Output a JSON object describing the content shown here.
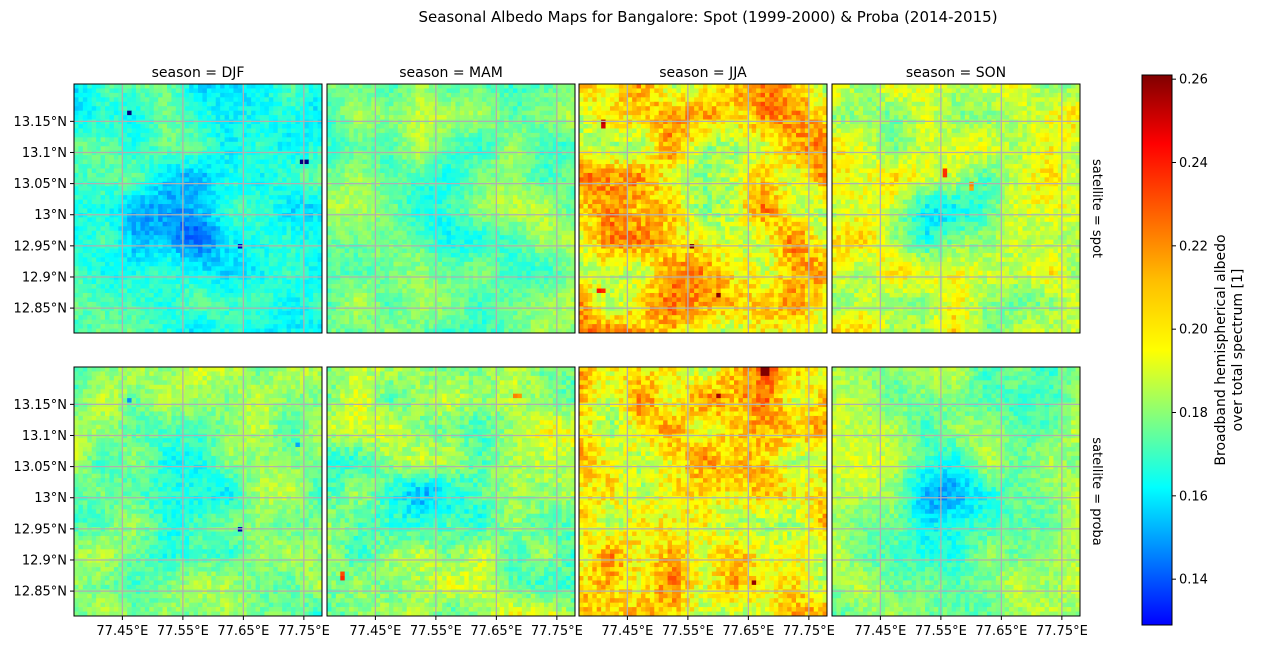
{
  "title": "Seasonal Albedo Maps for Bangalore: Spot (1999-2000) & Proba (2014-2015)",
  "chart_data": {
    "type": "heatmap",
    "title": "Seasonal Albedo Maps for Bangalore: Spot (1999-2000) & Proba (2014-2015)",
    "columns": {
      "facet": "season",
      "labels": [
        "season = DJF",
        "season = MAM",
        "season = JJA",
        "season = SON"
      ]
    },
    "rows": {
      "facet": "satellite",
      "labels": [
        "satellite = spot",
        "satellite = proba"
      ]
    },
    "x_ticks": [
      "77.45°E",
      "77.55°E",
      "77.65°E",
      "77.75°E"
    ],
    "x_tick_values": [
      77.45,
      77.55,
      77.65,
      77.75
    ],
    "xlim": [
      77.37,
      77.78
    ],
    "y_ticks": [
      "13.15°N",
      "13.1°N",
      "13.05°N",
      "13°N",
      "12.95°N",
      "12.9°N",
      "12.85°N"
    ],
    "y_tick_values": [
      13.15,
      13.1,
      13.05,
      13.0,
      12.95,
      12.9,
      12.85
    ],
    "ylim": [
      12.81,
      13.21
    ],
    "grid": true,
    "grid_color": "#b0b0b0",
    "colormap": "jet",
    "colorbar": {
      "label_line1": "Broadband hemispherical albedo",
      "label_line2": "over total spectrum [1]",
      "ticks": [
        "0.14",
        "0.16",
        "0.18",
        "0.20",
        "0.22",
        "0.24",
        "0.26"
      ],
      "tick_values": [
        0.14,
        0.16,
        0.18,
        0.2,
        0.22,
        0.24,
        0.26
      ],
      "vmin": 0.129,
      "vmax": 0.261
    },
    "panels": [
      {
        "satellite": "spot",
        "season": "DJF",
        "mean_albedo": 0.183
      },
      {
        "satellite": "spot",
        "season": "MAM",
        "mean_albedo": 0.194
      },
      {
        "satellite": "spot",
        "season": "JJA",
        "mean_albedo": 0.214
      },
      {
        "satellite": "spot",
        "season": "SON",
        "mean_albedo": 0.204
      },
      {
        "satellite": "proba",
        "season": "DJF",
        "mean_albedo": 0.195
      },
      {
        "satellite": "proba",
        "season": "MAM",
        "mean_albedo": 0.198
      },
      {
        "satellite": "proba",
        "season": "JJA",
        "mean_albedo": 0.214
      },
      {
        "satellite": "proba",
        "season": "SON",
        "mean_albedo": 0.196
      }
    ]
  }
}
